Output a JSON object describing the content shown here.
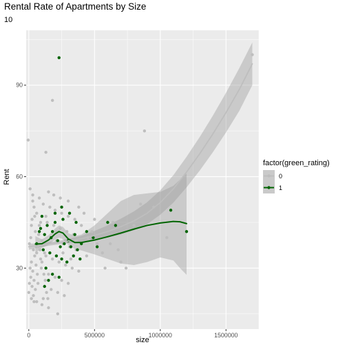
{
  "chart_data": {
    "type": "scatter",
    "title": "Rental Rate of Apartments by Size",
    "subtitle": "10",
    "xlabel": "size",
    "ylabel": "Rent",
    "xlim": [
      -20000,
      1750000
    ],
    "ylim": [
      10,
      108
    ],
    "x_ticks": [
      0,
      500000,
      1000000,
      1500000
    ],
    "x_tick_labels": [
      "0",
      "500000",
      "1000000",
      "1500000"
    ],
    "y_ticks": [
      30,
      60,
      90
    ],
    "y_tick_labels": [
      "30",
      "60",
      "90"
    ],
    "grid": true,
    "legend": {
      "title": "factor(green_rating)",
      "position": "right",
      "entries": [
        {
          "label": "0",
          "color": "#bebebe"
        },
        {
          "label": "1",
          "color": "#006400"
        }
      ]
    },
    "series": [
      {
        "name": "0",
        "color": "#bebebe",
        "points": [
          [
            -5000,
            72
          ],
          [
            10000,
            56
          ],
          [
            30000,
            54
          ],
          [
            130000,
            68
          ],
          [
            180000,
            85
          ],
          [
            880000,
            75
          ],
          [
            1700000,
            100
          ],
          [
            40000,
            50
          ],
          [
            60000,
            48
          ],
          [
            25000,
            46
          ],
          [
            80000,
            44
          ],
          [
            50000,
            42
          ],
          [
            15000,
            40
          ],
          [
            100000,
            39
          ],
          [
            5000,
            38
          ],
          [
            70000,
            37
          ],
          [
            35000,
            36
          ],
          [
            120000,
            35
          ],
          [
            45000,
            34
          ],
          [
            90000,
            33
          ],
          [
            20000,
            32
          ],
          [
            55000,
            31
          ],
          [
            10000,
            30
          ],
          [
            30000,
            29
          ],
          [
            65000,
            28
          ],
          [
            15000,
            27
          ],
          [
            40000,
            26
          ],
          [
            5000,
            25
          ],
          [
            25000,
            24
          ],
          [
            50000,
            23
          ],
          [
            0,
            22
          ],
          [
            35000,
            21
          ],
          [
            20000,
            20
          ],
          [
            60000,
            19
          ],
          [
            100000,
            18
          ],
          [
            150000,
            17
          ],
          [
            220000,
            15
          ],
          [
            30000,
            52
          ],
          [
            110000,
            51
          ],
          [
            160000,
            50
          ],
          [
            200000,
            49
          ],
          [
            250000,
            48
          ],
          [
            300000,
            47
          ],
          [
            350000,
            46
          ],
          [
            140000,
            45
          ],
          [
            190000,
            44
          ],
          [
            240000,
            43
          ],
          [
            290000,
            42
          ],
          [
            340000,
            41
          ],
          [
            170000,
            40
          ],
          [
            210000,
            39
          ],
          [
            260000,
            38
          ],
          [
            310000,
            37
          ],
          [
            360000,
            36
          ],
          [
            130000,
            34
          ],
          [
            180000,
            33
          ],
          [
            230000,
            32
          ],
          [
            280000,
            31
          ],
          [
            330000,
            30
          ],
          [
            380000,
            29
          ],
          [
            150000,
            28
          ],
          [
            200000,
            27
          ],
          [
            250000,
            26
          ],
          [
            300000,
            25
          ],
          [
            120000,
            24
          ],
          [
            170000,
            23
          ],
          [
            220000,
            22
          ],
          [
            270000,
            21
          ],
          [
            110000,
            20
          ],
          [
            400000,
            44
          ],
          [
            450000,
            40
          ],
          [
            520000,
            38
          ],
          [
            560000,
            35
          ],
          [
            620000,
            38
          ],
          [
            680000,
            36
          ],
          [
            700000,
            32
          ],
          [
            740000,
            30
          ],
          [
            800000,
            44
          ],
          [
            850000,
            51
          ],
          [
            950000,
            50
          ],
          [
            580000,
            30
          ],
          [
            420000,
            48
          ],
          [
            380000,
            50
          ],
          [
            300000,
            52
          ],
          [
            240000,
            53
          ],
          [
            190000,
            54
          ],
          [
            150000,
            55
          ],
          [
            80000,
            53
          ],
          [
            130000,
            47
          ],
          [
            90000,
            45
          ],
          [
            210000,
            42
          ],
          [
            260000,
            35
          ],
          [
            320000,
            33
          ],
          [
            360000,
            39
          ],
          [
            440000,
            34
          ],
          [
            480000,
            42
          ],
          [
            75000,
            41
          ],
          [
            85000,
            36
          ],
          [
            95000,
            30
          ],
          [
            115000,
            28
          ],
          [
            125000,
            26
          ],
          [
            135000,
            22
          ],
          [
            145000,
            20
          ],
          [
            20000,
            44
          ],
          [
            45000,
            47
          ],
          [
            60000,
            35
          ],
          [
            70000,
            25
          ],
          [
            40000,
            19
          ],
          [
            100000,
            32
          ],
          [
            500000,
            46
          ],
          [
            640000,
            45
          ],
          [
            1200000,
            42
          ],
          [
            1050000,
            40
          ]
        ]
      },
      {
        "name": "1",
        "color": "#006400",
        "points": [
          [
            230000,
            99
          ],
          [
            1080000,
            49
          ],
          [
            1200000,
            42
          ],
          [
            100000,
            47
          ],
          [
            140000,
            44
          ],
          [
            200000,
            45
          ],
          [
            260000,
            46
          ],
          [
            310000,
            48
          ],
          [
            360000,
            45
          ],
          [
            80000,
            42
          ],
          [
            120000,
            41
          ],
          [
            170000,
            40
          ],
          [
            220000,
            39
          ],
          [
            270000,
            38
          ],
          [
            320000,
            37
          ],
          [
            370000,
            36
          ],
          [
            60000,
            38
          ],
          [
            110000,
            36
          ],
          [
            160000,
            35
          ],
          [
            210000,
            34
          ],
          [
            250000,
            33
          ],
          [
            290000,
            32
          ],
          [
            340000,
            34
          ],
          [
            390000,
            33
          ],
          [
            130000,
            30
          ],
          [
            180000,
            28
          ],
          [
            230000,
            27
          ],
          [
            150000,
            26
          ],
          [
            120000,
            24
          ],
          [
            200000,
            48
          ],
          [
            250000,
            50
          ],
          [
            440000,
            42
          ],
          [
            490000,
            40
          ],
          [
            520000,
            37
          ],
          [
            600000,
            45
          ],
          [
            660000,
            44
          ],
          [
            90000,
            43
          ],
          [
            180000,
            42
          ],
          [
            240000,
            37
          ],
          [
            300000,
            39
          ],
          [
            350000,
            41
          ],
          [
            400000,
            38
          ]
        ]
      }
    ],
    "smooth_1_fit": [
      [
        50000,
        37.9
      ],
      [
        100000,
        38.0
      ],
      [
        150000,
        39.2
      ],
      [
        200000,
        41.2
      ],
      [
        230000,
        42.0
      ],
      [
        260000,
        41.5
      ],
      [
        300000,
        39.6
      ],
      [
        350000,
        38.4
      ],
      [
        400000,
        38.4
      ],
      [
        500000,
        39.2
      ],
      [
        600000,
        40.3
      ],
      [
        700000,
        41.5
      ],
      [
        800000,
        42.8
      ],
      [
        900000,
        44.0
      ],
      [
        1000000,
        44.8
      ],
      [
        1100000,
        45.3
      ],
      [
        1150000,
        45.2
      ],
      [
        1200000,
        44.6
      ]
    ],
    "smooth_1_band_upper": [
      [
        50000,
        40.5
      ],
      [
        100000,
        39.4
      ],
      [
        150000,
        40.8
      ],
      [
        200000,
        43.0
      ],
      [
        230000,
        44.0
      ],
      [
        260000,
        43.5
      ],
      [
        300000,
        41.5
      ],
      [
        350000,
        40.5
      ],
      [
        400000,
        41.0
      ],
      [
        500000,
        44.0
      ],
      [
        600000,
        48.0
      ],
      [
        700000,
        52.0
      ],
      [
        800000,
        54.0
      ],
      [
        900000,
        54.5
      ],
      [
        1000000,
        55.0
      ],
      [
        1100000,
        57.0
      ],
      [
        1150000,
        59.0
      ],
      [
        1200000,
        61.0
      ]
    ],
    "smooth_1_band_lower": [
      [
        50000,
        35.0
      ],
      [
        100000,
        36.6
      ],
      [
        150000,
        37.6
      ],
      [
        200000,
        39.4
      ],
      [
        230000,
        40.0
      ],
      [
        260000,
        39.5
      ],
      [
        300000,
        37.7
      ],
      [
        350000,
        36.3
      ],
      [
        400000,
        35.8
      ],
      [
        500000,
        34.5
      ],
      [
        600000,
        33.0
      ],
      [
        700000,
        31.5
      ],
      [
        800000,
        31.0
      ],
      [
        900000,
        32.0
      ],
      [
        1000000,
        33.5
      ],
      [
        1100000,
        32.5
      ],
      [
        1150000,
        30.0
      ],
      [
        1200000,
        27.8
      ]
    ],
    "smooth_0_fit": [
      [
        0,
        37.0
      ],
      [
        100000,
        37.6
      ],
      [
        200000,
        38.2
      ],
      [
        300000,
        38.9
      ],
      [
        400000,
        39.6
      ],
      [
        500000,
        40.7
      ],
      [
        600000,
        42.0
      ],
      [
        700000,
        43.6
      ],
      [
        800000,
        45.5
      ],
      [
        900000,
        48.0
      ],
      [
        1000000,
        51.5
      ],
      [
        1100000,
        56.0
      ],
      [
        1200000,
        61.5
      ],
      [
        1300000,
        67.5
      ],
      [
        1400000,
        74.0
      ],
      [
        1500000,
        81.0
      ],
      [
        1600000,
        88.5
      ],
      [
        1700000,
        97.0
      ]
    ],
    "smooth_0_band_upper": [
      [
        0,
        38.0
      ],
      [
        100000,
        38.2
      ],
      [
        200000,
        38.8
      ],
      [
        300000,
        39.6
      ],
      [
        400000,
        40.6
      ],
      [
        500000,
        42.2
      ],
      [
        600000,
        44.0
      ],
      [
        700000,
        46.2
      ],
      [
        800000,
        48.6
      ],
      [
        900000,
        51.6
      ],
      [
        1000000,
        55.5
      ],
      [
        1100000,
        60.5
      ],
      [
        1200000,
        66.5
      ],
      [
        1300000,
        73.0
      ],
      [
        1400000,
        80.0
      ],
      [
        1500000,
        87.5
      ],
      [
        1600000,
        95.5
      ],
      [
        1700000,
        104.0
      ]
    ],
    "smooth_0_band_lower": [
      [
        0,
        36.0
      ],
      [
        100000,
        37.0
      ],
      [
        200000,
        37.6
      ],
      [
        300000,
        38.2
      ],
      [
        400000,
        38.6
      ],
      [
        500000,
        39.2
      ],
      [
        600000,
        40.0
      ],
      [
        700000,
        41.0
      ],
      [
        800000,
        42.4
      ],
      [
        900000,
        44.4
      ],
      [
        1000000,
        47.5
      ],
      [
        1100000,
        51.5
      ],
      [
        1200000,
        56.5
      ],
      [
        1300000,
        62.0
      ],
      [
        1400000,
        68.0
      ],
      [
        1500000,
        74.5
      ],
      [
        1600000,
        81.5
      ],
      [
        1700000,
        90.0
      ]
    ]
  }
}
